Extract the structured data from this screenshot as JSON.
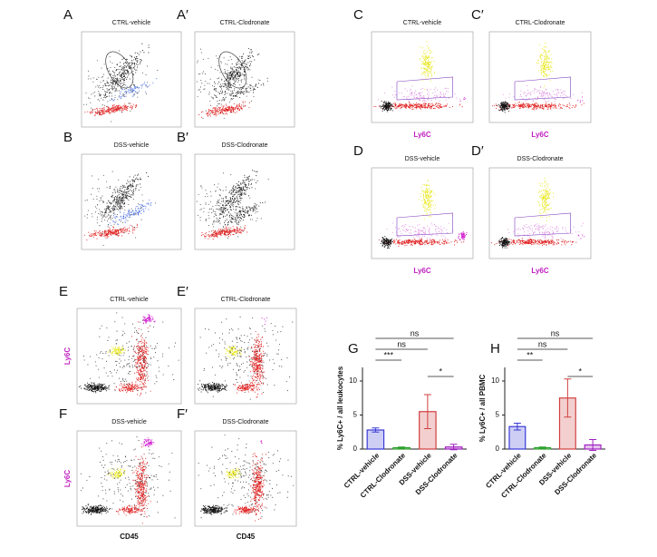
{
  "flow_panels": [
    {
      "label": "A",
      "title": "CTRL-vehicle"
    },
    {
      "label": "A′",
      "title": "CTRL-Clodronate"
    },
    {
      "label": "B",
      "title": "DSS-vehicle"
    },
    {
      "label": "B′",
      "title": "DSS-Clodronate"
    },
    {
      "label": "C",
      "title": "CTRL-vehicle",
      "x_label": "Ly6C"
    },
    {
      "label": "C′",
      "title": "CTRL-Clodronate",
      "x_label": "Ly6C"
    },
    {
      "label": "D",
      "title": "DSS-vehicle",
      "x_label": "Ly6C"
    },
    {
      "label": "D′",
      "title": "DSS-Clodronate",
      "x_label": "Ly6C"
    },
    {
      "label": "E",
      "title": "CTRL-vehicle",
      "y_label": "Ly6C"
    },
    {
      "label": "E′",
      "title": "CTRL-Clodronate"
    },
    {
      "label": "F",
      "title": "DSS-vehicle",
      "y_label": "Ly6C",
      "x_label": "CD45"
    },
    {
      "label": "F′",
      "title": "DSS-Clodronate",
      "x_label": "CD45"
    }
  ],
  "chart_data": [
    {
      "type": "bar",
      "label": "G",
      "y_label": "% Ly6C+ / all leukocytes",
      "categories": [
        "CTRL-vehicle",
        "CTRL-Clodronate",
        "DSS-vehicle",
        "DSS-Clodronate"
      ],
      "values": [
        2.8,
        0.2,
        5.5,
        0.3
      ],
      "errors": [
        0.3,
        0.1,
        2.5,
        0.4
      ],
      "colors": [
        "#3a3ad8",
        "#2ca02c",
        "#d04040",
        "#a020c0"
      ],
      "ylim": [
        0,
        12
      ],
      "yticks": [
        0,
        5,
        10
      ],
      "annotations": [
        "***",
        "ns",
        "ns",
        "*"
      ]
    },
    {
      "type": "bar",
      "label": "H",
      "y_label": "% Ly6C+ / all PBMC",
      "categories": [
        "CTRL-vehicle",
        "CTRL-Clodronate",
        "DSS-vehicle",
        "DSS-Clodronate"
      ],
      "values": [
        3.3,
        0.2,
        7.5,
        0.6
      ],
      "errors": [
        0.5,
        0.1,
        2.8,
        0.8
      ],
      "colors": [
        "#3a3ad8",
        "#2ca02c",
        "#d04040",
        "#a020c0"
      ],
      "ylim": [
        0,
        12
      ],
      "yticks": [
        0,
        5,
        10
      ],
      "annotations": [
        "**",
        "ns",
        "ns",
        "*"
      ]
    }
  ]
}
